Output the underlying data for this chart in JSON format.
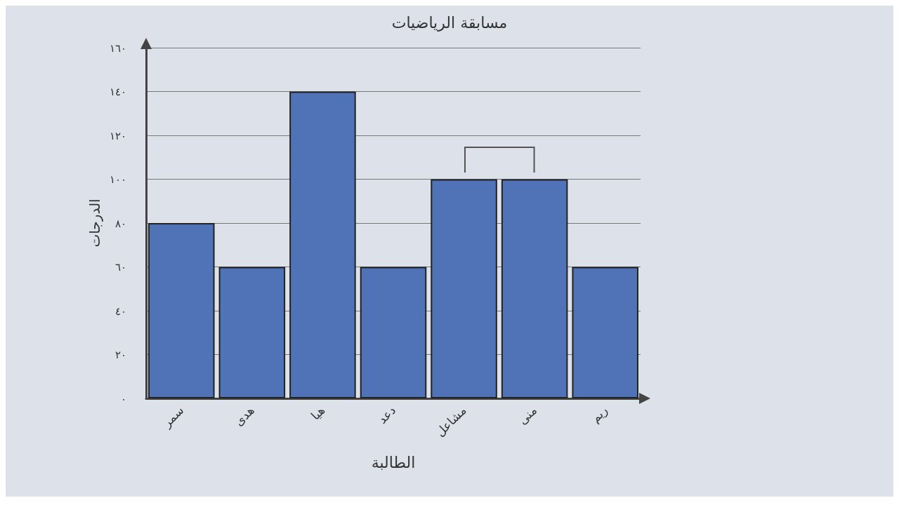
{
  "chart_data": {
    "type": "bar",
    "title": "مسابقة الرياضيات",
    "xlabel": "الطالبة",
    "ylabel": "الدرجات",
    "categories": [
      "سمر",
      "هدى",
      "هيا",
      "دعد",
      "مشاعل",
      "منى",
      "ريم"
    ],
    "values": [
      80,
      60,
      140,
      60,
      100,
      100,
      60
    ],
    "color": "#4f73b6",
    "ylim": [
      0,
      160
    ],
    "yticks": [
      {
        "value": 0,
        "label": "٠"
      },
      {
        "value": 20,
        "label": "٢٠"
      },
      {
        "value": 40,
        "label": "٤٠"
      },
      {
        "value": 60,
        "label": "٦٠"
      },
      {
        "value": 80,
        "label": "٨٠"
      },
      {
        "value": 100,
        "label": "١٠٠"
      },
      {
        "value": 120,
        "label": "١٢٠"
      },
      {
        "value": 140,
        "label": "١٤٠"
      },
      {
        "value": 160,
        "label": "١٦٠"
      }
    ],
    "grid": "y"
  }
}
